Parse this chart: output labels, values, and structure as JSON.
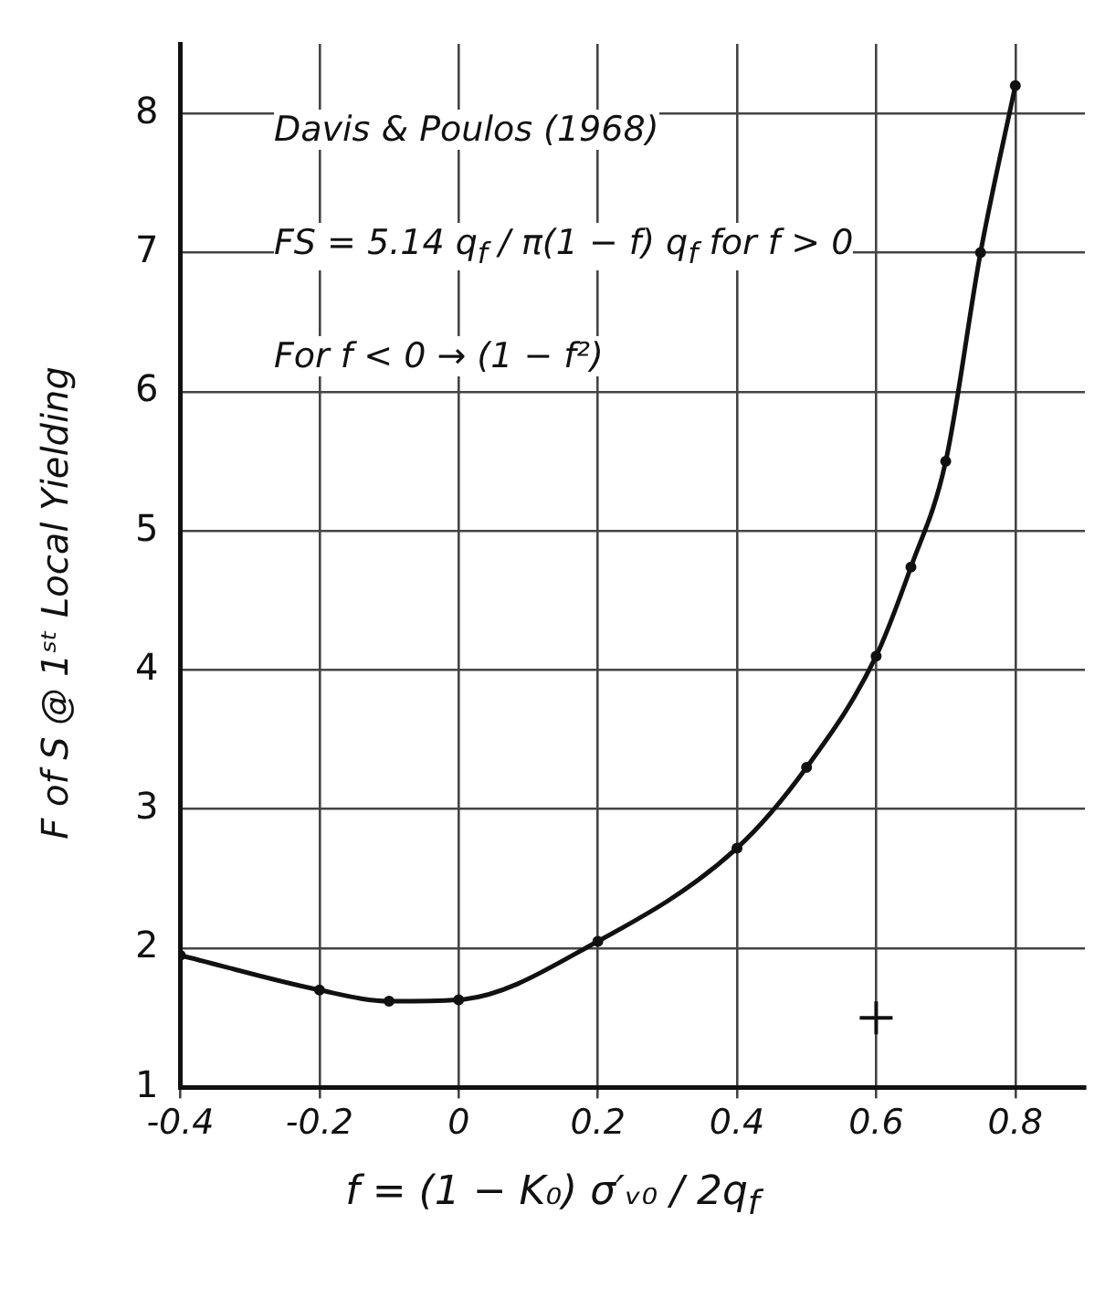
{
  "chart_data": {
    "type": "line",
    "xlabel": "f = (1 − K₀) σ′ᵥ₀ / 2q$_{f}$",
    "ylabel": "F of S @ 1ˢᵗ Local Yielding",
    "annotations": [
      "Davis & Poulos (1968)",
      "FS = 5.14 q$_{f}$ / π(1 − f) q$_{f}$  for f > 0",
      "For f < 0 → (1 − f²)"
    ],
    "series": [
      {
        "color": "#111111",
        "x": [
          -0.4,
          -0.2,
          -0.1,
          0,
          0.2,
          0.4,
          0.5,
          0.6,
          0.65,
          0.7,
          0.75,
          0.8
        ],
        "values": [
          1.95,
          1.7,
          1.62,
          1.63,
          2.05,
          2.72,
          3.3,
          4.1,
          4.74,
          5.5,
          7.0,
          8.2
        ],
        "marker": "circle"
      },
      {
        "type": "scatter",
        "color": "#111111",
        "x": [
          0.6
        ],
        "values": [
          1.5
        ],
        "marker": "cross"
      }
    ],
    "xlim": [
      -0.4,
      0.9
    ],
    "xticks": [
      -0.4,
      -0.2,
      0,
      0.2,
      0.4,
      0.6,
      0.8
    ],
    "ylim": [
      1,
      8.5
    ],
    "yticks": [
      1,
      2,
      3,
      4,
      5,
      6,
      7,
      8
    ],
    "grid": true,
    "line_style": "solid"
  }
}
